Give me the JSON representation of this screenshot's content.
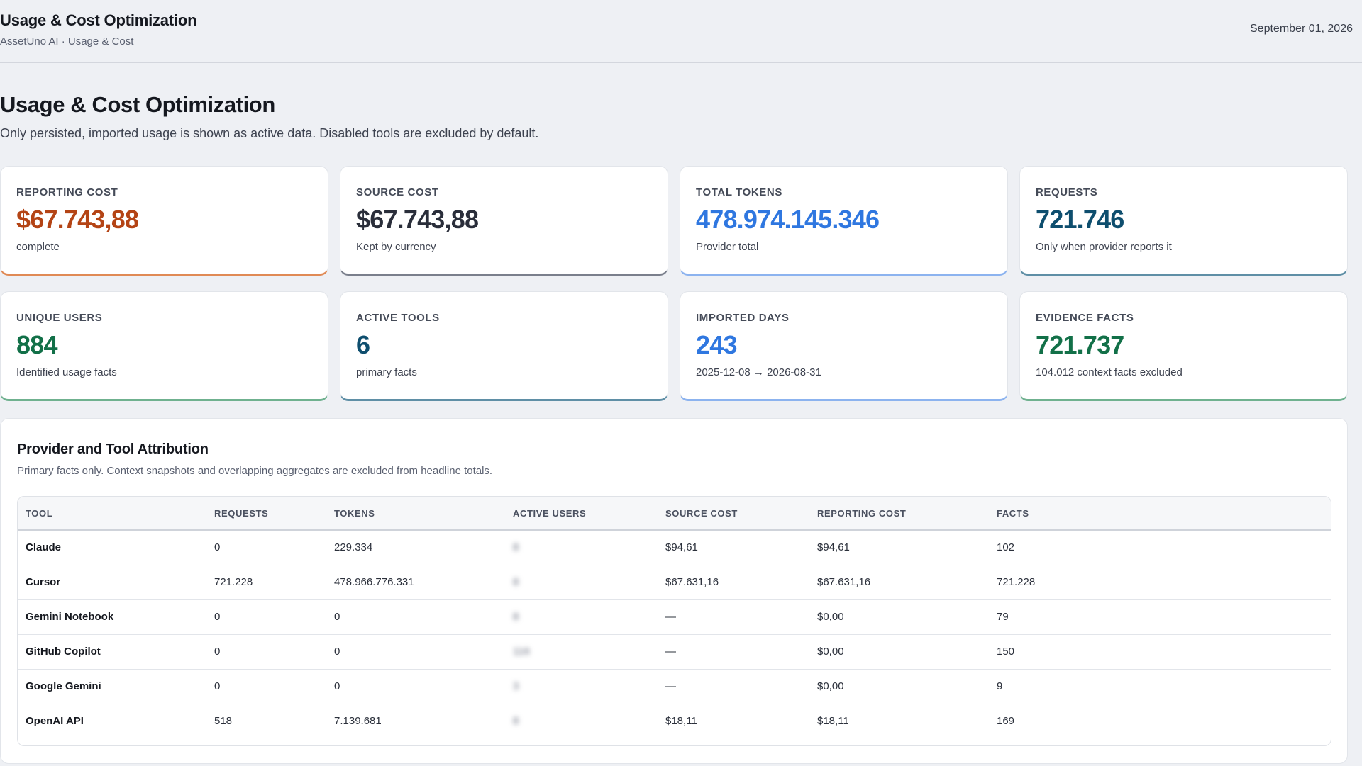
{
  "topbar": {
    "title": "Usage & Cost Optimization",
    "breadcrumb": "AssetUno AI · Usage & Cost",
    "date": "September 01, 2026"
  },
  "header": {
    "title": "Usage & Cost Optimization",
    "subtitle": "Only persisted, imported usage is shown as active data. Disabled tools are excluded by default."
  },
  "kpis": [
    {
      "label": "REPORTING COST",
      "value": "$67.743,88",
      "hint": "complete",
      "color": "#b44415",
      "accent": "#e08a55"
    },
    {
      "label": "SOURCE COST",
      "value": "$67.743,88",
      "hint": "Kept by currency",
      "color": "#2a2e3a",
      "accent": "#7a7f8c"
    },
    {
      "label": "TOTAL TOKENS",
      "value": "478.974.145.346",
      "hint": "Provider total",
      "color": "#2f77e0",
      "accent": "#8cb3ef"
    },
    {
      "label": "REQUESTS",
      "value": "721.746",
      "hint": "Only when provider reports it",
      "color": "#0e4e6e",
      "accent": "#5f8fa6"
    },
    {
      "label": "UNIQUE USERS",
      "value": "884",
      "hint": "Identified usage facts",
      "color": "#127048",
      "accent": "#6fb18f"
    },
    {
      "label": "ACTIVE TOOLS",
      "value": "6",
      "hint": "primary facts",
      "color": "#0e4e6e",
      "accent": "#5f8fa6"
    },
    {
      "label": "IMPORTED DAYS",
      "value": "243",
      "hint": "2025-12-08 → 2026-08-31",
      "color": "#2f77e0",
      "accent": "#8cb3ef"
    },
    {
      "label": "EVIDENCE FACTS",
      "value": "721.737",
      "hint": "104.012 context facts excluded",
      "color": "#127048",
      "accent": "#6fb18f"
    }
  ],
  "attribution": {
    "title": "Provider and Tool Attribution",
    "subtitle": "Primary facts only. Context snapshots and overlapping aggregates are excluded from headline totals.",
    "columns": [
      "TOOL",
      "REQUESTS",
      "TOKENS",
      "ACTIVE USERS",
      "SOURCE COST",
      "REPORTING COST",
      "FACTS"
    ],
    "rows": [
      [
        "Claude",
        "0",
        "229.334",
        "8",
        "$94,61",
        "$94,61",
        "102"
      ],
      [
        "Cursor",
        "721.228",
        "478.966.776.331",
        "8",
        "$67.631,16",
        "$67.631,16",
        "721.228"
      ],
      [
        "Gemini Notebook",
        "0",
        "0",
        "8",
        "—",
        "$0,00",
        "79"
      ],
      [
        "GitHub Copilot",
        "0",
        "0",
        "116",
        "—",
        "$0,00",
        "150"
      ],
      [
        "Google Gemini",
        "0",
        "0",
        "3",
        "—",
        "$0,00",
        "9"
      ],
      [
        "OpenAI API",
        "518",
        "7.139.681",
        "8",
        "$18,11",
        "$18,11",
        "169"
      ]
    ]
  }
}
